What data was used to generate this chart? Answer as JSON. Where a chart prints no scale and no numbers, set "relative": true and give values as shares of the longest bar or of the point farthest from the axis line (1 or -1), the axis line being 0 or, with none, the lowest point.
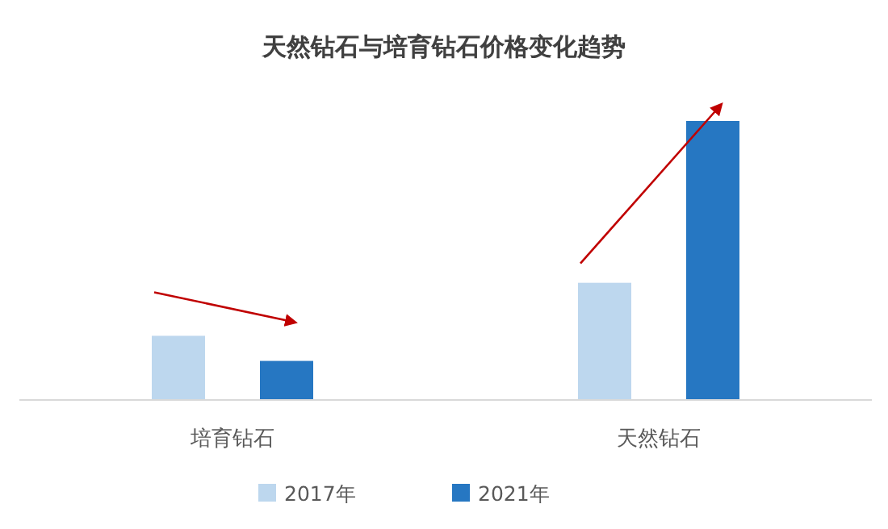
{
  "chart_data": {
    "type": "bar",
    "title": "天然钻石与培育钻石价格变化趋势",
    "categories": [
      "培育钻石",
      "天然钻石"
    ],
    "relative": true,
    "legend": "bottom",
    "series": [
      {
        "name": "2017年",
        "color": "#bdd7ee",
        "values": [
          0.23,
          0.42
        ]
      },
      {
        "name": "2021年",
        "color": "#2677c2",
        "values": [
          0.14,
          1
        ]
      }
    ]
  }
}
